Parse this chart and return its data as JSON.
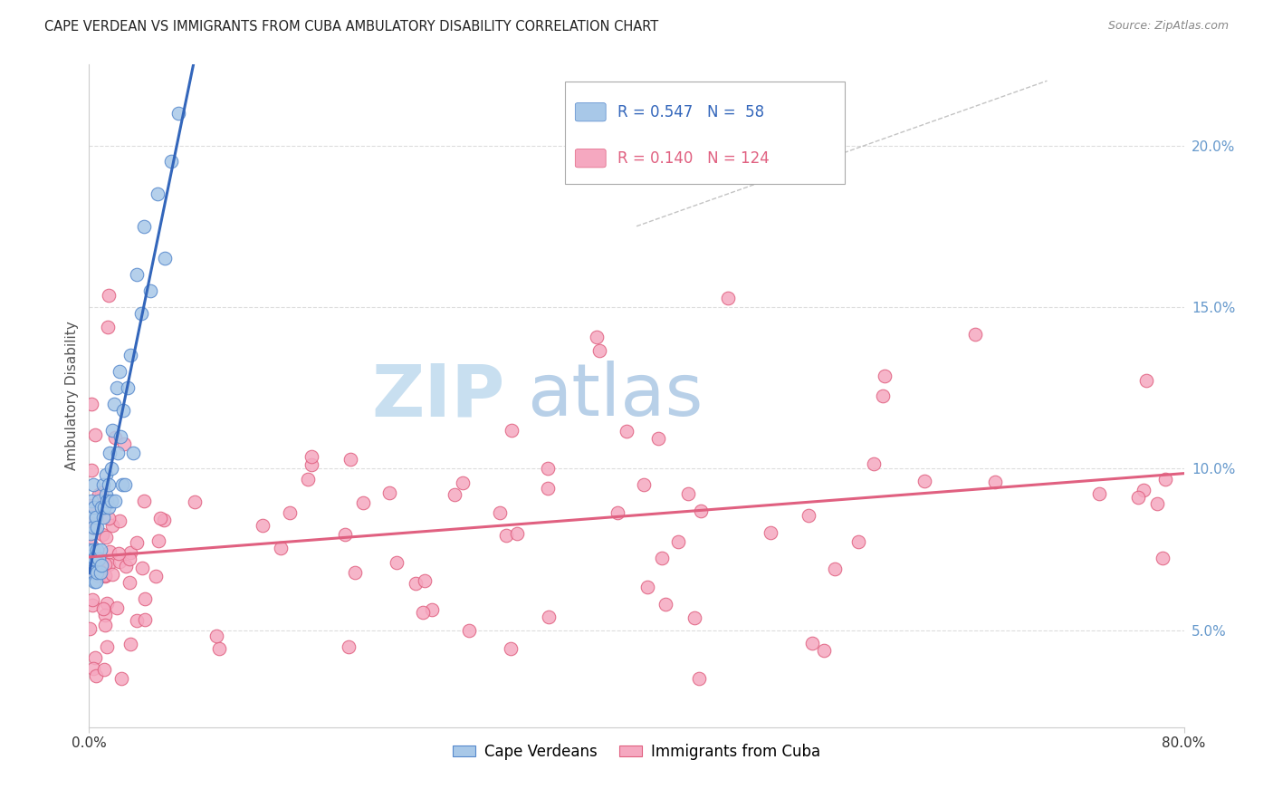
{
  "title": "CAPE VERDEAN VS IMMIGRANTS FROM CUBA AMBULATORY DISABILITY CORRELATION CHART",
  "source": "Source: ZipAtlas.com",
  "ylabel": "Ambulatory Disability",
  "xlim": [
    0.0,
    0.8
  ],
  "ylim": [
    0.02,
    0.225
  ],
  "yticks": [
    0.05,
    0.1,
    0.15,
    0.2
  ],
  "ytick_labels": [
    "5.0%",
    "10.0%",
    "15.0%",
    "20.0%"
  ],
  "blue_R": 0.547,
  "blue_N": 58,
  "pink_R": 0.14,
  "pink_N": 124,
  "blue_scatter_color": "#A8C8E8",
  "blue_edge_color": "#5588CC",
  "pink_scatter_color": "#F5A8C0",
  "pink_edge_color": "#E06080",
  "blue_line_color": "#3366BB",
  "pink_line_color": "#E06080",
  "grid_color": "#DDDDDD",
  "axis_color": "#CCCCCC",
  "right_tick_color": "#6699CC",
  "legend_label_blue": "Cape Verdeans",
  "legend_label_pink": "Immigrants from Cuba",
  "watermark_zip_color": "#C8DFF0",
  "watermark_atlas_color": "#B8D0E8"
}
